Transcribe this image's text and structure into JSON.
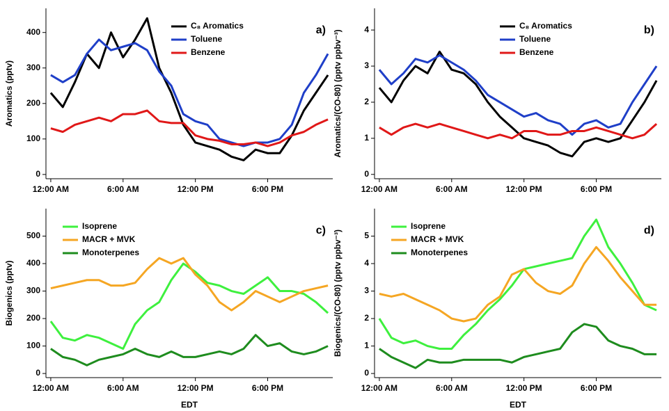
{
  "chart_data": [
    {
      "type": "line",
      "panel_label": "a)",
      "ylabel": "Aromatics (pptv)",
      "legend": "top-center",
      "xlim": [
        -0.4,
        23.4
      ],
      "xticks": [
        {
          "value": 0,
          "label": "12:00 AM"
        },
        {
          "value": 6,
          "label": "6:00 AM"
        },
        {
          "value": 12,
          "label": "12:00 PM"
        },
        {
          "value": 18,
          "label": "6:00 PM"
        }
      ],
      "ylim": [
        -12,
        468
      ],
      "yticks": [
        0,
        100,
        200,
        300,
        400
      ],
      "x": [
        0,
        1,
        2,
        3,
        4,
        5,
        6,
        7,
        8,
        9,
        10,
        11,
        12,
        13,
        14,
        15,
        16,
        17,
        18,
        19,
        20,
        21,
        22,
        23
      ],
      "series": [
        {
          "name": "C₈ Aromatics",
          "color": "#000000",
          "values": [
            230,
            190,
            260,
            340,
            300,
            400,
            330,
            380,
            440,
            300,
            230,
            140,
            90,
            80,
            70,
            50,
            40,
            70,
            60,
            60,
            110,
            180,
            230,
            280
          ]
        },
        {
          "name": "Toluene",
          "color": "#1f3fc8",
          "values": [
            280,
            260,
            280,
            340,
            380,
            350,
            360,
            370,
            350,
            290,
            250,
            170,
            150,
            140,
            100,
            90,
            80,
            90,
            90,
            100,
            140,
            230,
            280,
            340
          ]
        },
        {
          "name": "Benzene",
          "color": "#e01818",
          "values": [
            130,
            120,
            140,
            150,
            160,
            150,
            170,
            170,
            180,
            150,
            145,
            145,
            110,
            100,
            95,
            85,
            85,
            90,
            80,
            90,
            110,
            120,
            140,
            155
          ]
        }
      ]
    },
    {
      "type": "line",
      "panel_label": "b)",
      "ylabel": "Aromatics/(CO-80) (pptv ppbv⁻³)",
      "legend": "top-center",
      "xlim": [
        -0.4,
        23.4
      ],
      "xticks": [
        {
          "value": 0,
          "label": "12:00 AM"
        },
        {
          "value": 6,
          "label": "6:00 AM"
        },
        {
          "value": 12,
          "label": "12:00 PM"
        },
        {
          "value": 18,
          "label": "6:00 PM"
        }
      ],
      "ylim": [
        -0.12,
        4.6
      ],
      "yticks": [
        0,
        1,
        2,
        3,
        4
      ],
      "x": [
        0,
        1,
        2,
        3,
        4,
        5,
        6,
        7,
        8,
        9,
        10,
        11,
        12,
        13,
        14,
        15,
        16,
        17,
        18,
        19,
        20,
        21,
        22,
        23
      ],
      "series": [
        {
          "name": "C₈ Aromatics",
          "color": "#000000",
          "values": [
            2.4,
            2.0,
            2.6,
            3.0,
            2.8,
            3.4,
            2.9,
            2.8,
            2.5,
            2.0,
            1.6,
            1.3,
            1.0,
            0.9,
            0.8,
            0.6,
            0.5,
            0.9,
            1.0,
            0.9,
            1.0,
            1.5,
            2.0,
            2.6
          ]
        },
        {
          "name": "Toluene",
          "color": "#1f3fc8",
          "values": [
            2.9,
            2.5,
            2.8,
            3.2,
            3.1,
            3.3,
            3.1,
            2.9,
            2.6,
            2.2,
            2.0,
            1.8,
            1.6,
            1.7,
            1.5,
            1.4,
            1.1,
            1.4,
            1.5,
            1.3,
            1.4,
            2.0,
            2.5,
            3.0
          ]
        },
        {
          "name": "Benzene",
          "color": "#e01818",
          "values": [
            1.3,
            1.1,
            1.3,
            1.4,
            1.3,
            1.4,
            1.3,
            1.2,
            1.1,
            1.0,
            1.1,
            1.0,
            1.2,
            1.2,
            1.1,
            1.1,
            1.2,
            1.2,
            1.3,
            1.2,
            1.1,
            1.0,
            1.1,
            1.4
          ]
        }
      ]
    },
    {
      "type": "line",
      "panel_label": "c)",
      "ylabel": "Biogenics (pptv)",
      "xlabel": "EDT",
      "legend": "top-left",
      "xlim": [
        -0.4,
        23.4
      ],
      "xticks": [
        {
          "value": 0,
          "label": "12:00 AM"
        },
        {
          "value": 6,
          "label": "6:00 AM"
        },
        {
          "value": 12,
          "label": "12:00 PM"
        },
        {
          "value": 18,
          "label": "6:00 PM"
        }
      ],
      "ylim": [
        -15,
        600
      ],
      "yticks": [
        0,
        100,
        200,
        300,
        400,
        500
      ],
      "x": [
        0,
        1,
        2,
        3,
        4,
        5,
        6,
        7,
        8,
        9,
        10,
        11,
        12,
        13,
        14,
        15,
        16,
        17,
        18,
        19,
        20,
        21,
        22,
        23
      ],
      "series": [
        {
          "name": "Isoprene",
          "color": "#3ef03e",
          "values": [
            190,
            130,
            120,
            140,
            130,
            110,
            90,
            180,
            230,
            260,
            340,
            400,
            370,
            330,
            320,
            300,
            290,
            320,
            350,
            300,
            300,
            290,
            260,
            220
          ]
        },
        {
          "name": "MACR + MVK",
          "color": "#f5a623",
          "values": [
            310,
            320,
            330,
            340,
            340,
            320,
            320,
            330,
            380,
            420,
            400,
            420,
            360,
            320,
            260,
            230,
            260,
            300,
            280,
            260,
            280,
            300,
            310,
            320
          ]
        },
        {
          "name": "Monoterpenes",
          "color": "#1e8c1e",
          "values": [
            90,
            60,
            50,
            30,
            50,
            60,
            70,
            90,
            70,
            60,
            80,
            60,
            60,
            70,
            80,
            70,
            90,
            140,
            100,
            110,
            80,
            70,
            80,
            100
          ]
        }
      ]
    },
    {
      "type": "line",
      "panel_label": "d)",
      "ylabel": "Biogenics/(CO-80) (pptv ppbv⁻³)",
      "xlabel": "EDT",
      "legend": "top-left",
      "xlim": [
        -0.4,
        23.4
      ],
      "xticks": [
        {
          "value": 0,
          "label": "12:00 AM"
        },
        {
          "value": 6,
          "label": "6:00 AM"
        },
        {
          "value": 12,
          "label": "12:00 PM"
        },
        {
          "value": 18,
          "label": "6:00 PM"
        }
      ],
      "ylim": [
        -0.15,
        6.0
      ],
      "yticks": [
        0,
        1,
        2,
        3,
        4,
        5
      ],
      "x": [
        0,
        1,
        2,
        3,
        4,
        5,
        6,
        7,
        8,
        9,
        10,
        11,
        12,
        13,
        14,
        15,
        16,
        17,
        18,
        19,
        20,
        21,
        22,
        23
      ],
      "series": [
        {
          "name": "Isoprene",
          "color": "#3ef03e",
          "values": [
            2.0,
            1.3,
            1.1,
            1.2,
            1.0,
            0.9,
            0.9,
            1.4,
            1.8,
            2.3,
            2.7,
            3.2,
            3.8,
            3.9,
            4.0,
            4.1,
            4.2,
            5.0,
            5.6,
            4.6,
            4.0,
            3.3,
            2.5,
            2.3
          ]
        },
        {
          "name": "MACR + MVK",
          "color": "#f5a623",
          "values": [
            2.9,
            2.8,
            2.9,
            2.7,
            2.5,
            2.3,
            2.0,
            1.9,
            2.0,
            2.5,
            2.8,
            3.6,
            3.8,
            3.3,
            3.0,
            2.9,
            3.2,
            4.0,
            4.6,
            4.1,
            3.5,
            3.0,
            2.5,
            2.5
          ]
        },
        {
          "name": "Monoterpenes",
          "color": "#1e8c1e",
          "values": [
            0.9,
            0.6,
            0.4,
            0.2,
            0.5,
            0.4,
            0.4,
            0.5,
            0.5,
            0.5,
            0.5,
            0.4,
            0.6,
            0.7,
            0.8,
            0.9,
            1.5,
            1.8,
            1.7,
            1.2,
            1.0,
            0.9,
            0.7,
            0.7
          ]
        }
      ]
    }
  ]
}
